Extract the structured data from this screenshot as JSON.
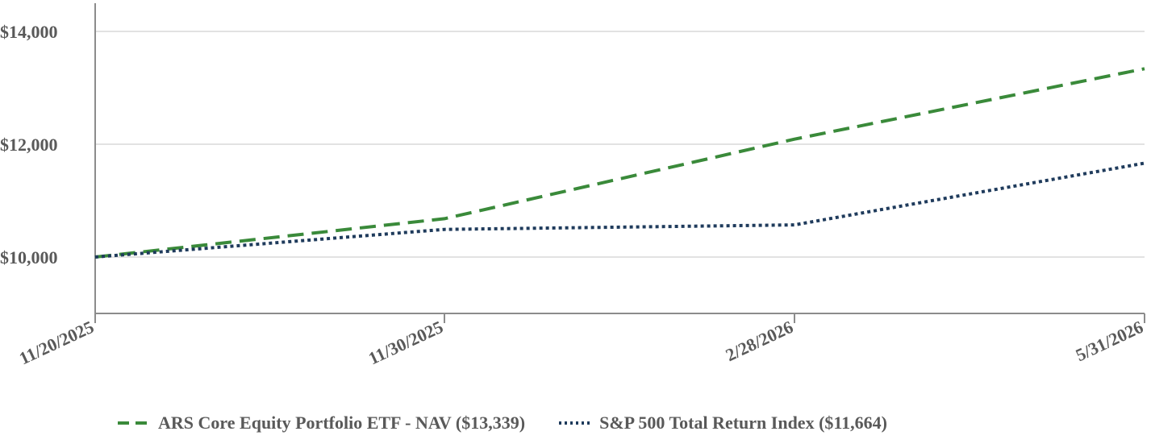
{
  "chart_data": {
    "type": "line",
    "x": [
      "11/20/2025",
      "11/30/2025",
      "2/28/2026",
      "5/31/2026"
    ],
    "y_ticks": [
      "$10,000",
      "$12,000",
      "$14,000"
    ],
    "y_tick_values": [
      10000,
      12000,
      14000
    ],
    "ylim": [
      9000,
      14500
    ],
    "grid": true,
    "legend_position": "bottom",
    "series": [
      {
        "name": "ARS Core Equity Portfolio ETF - NAV ($13,339)",
        "values": [
          10000,
          10680,
          12090,
          13339
        ],
        "color": "#3a8a3a",
        "style": "dashed"
      },
      {
        "name": "S&P 500 Total Return Index ($11,664)",
        "values": [
          10000,
          10490,
          10570,
          11664
        ],
        "color": "#1f3b5c",
        "style": "dotted"
      }
    ]
  }
}
